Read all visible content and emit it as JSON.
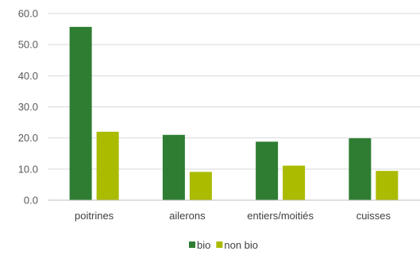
{
  "chart_data": {
    "type": "bar",
    "categories": [
      "poitrines",
      "ailerons",
      "entiers/moitiés",
      "cuisses"
    ],
    "series": [
      {
        "name": "bio",
        "color": "#2e7d32",
        "values": [
          55.7,
          21.0,
          18.8,
          19.9
        ]
      },
      {
        "name": "non bio",
        "color": "#aabb00",
        "values": [
          22.0,
          9.1,
          11.1,
          9.4
        ]
      }
    ],
    "yticks": [
      "0.0",
      "10.0",
      "20.0",
      "30.0",
      "40.0",
      "50.0",
      "60.0"
    ],
    "ylim": [
      0,
      60
    ],
    "grid": true,
    "legend_position": "bottom-center",
    "title": "",
    "xlabel": "",
    "ylabel": ""
  }
}
